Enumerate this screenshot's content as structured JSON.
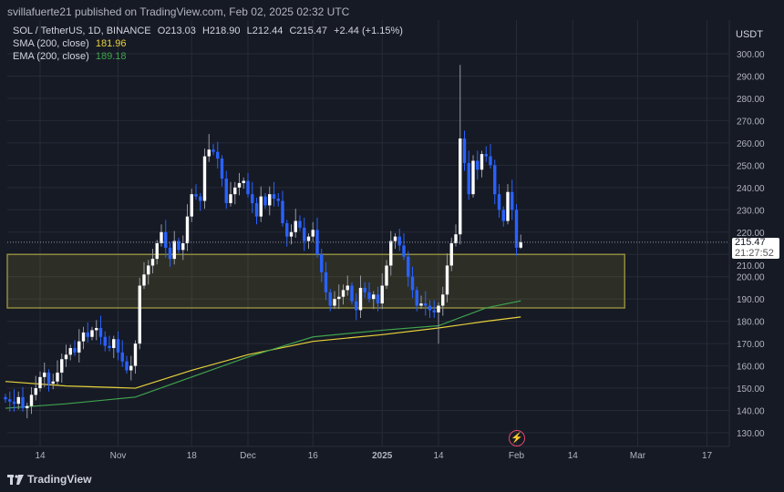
{
  "header": {
    "published": "svillafuerte21 published on TradingView.com, Feb 02, 2025 02:32 UTC"
  },
  "legend": {
    "symbol": "SOL / TetherUS, 1D, BINANCE",
    "open": "O213.03",
    "high": "H218.90",
    "low": "L212.44",
    "close": "C215.47",
    "change": "+2.44 (+1.15%)",
    "sma_label": "SMA (200, close)",
    "sma_value": "181.96",
    "ema_label": "EMA (200, close)",
    "ema_value": "189.18"
  },
  "axis": {
    "currency": "USDT",
    "last_price": "215.47",
    "countdown": "21:27:52"
  },
  "footer": {
    "brand": "TradingView"
  },
  "colors": {
    "up": "#ffffff",
    "down": "#2962ff",
    "sma": "#e8d23a",
    "ema": "#3fa34d",
    "zone": "#ffeb3b",
    "background": "#161a25",
    "grid": "#262b37"
  },
  "chart_data": {
    "type": "candlestick",
    "interval": "1D",
    "first_date": "2024-10-06",
    "ylim": [
      125,
      305
    ],
    "y_ticks": [
      130,
      140,
      150,
      160,
      170,
      180,
      190,
      200,
      210,
      220,
      230,
      240,
      250,
      260,
      270,
      280,
      290,
      300
    ],
    "x_ticks": [
      {
        "label": "14",
        "date": "2024-10-14"
      },
      {
        "label": "Nov",
        "date": "2024-11-01"
      },
      {
        "label": "18",
        "date": "2024-11-18"
      },
      {
        "label": "Dec",
        "date": "2024-12-01"
      },
      {
        "label": "16",
        "date": "2024-12-16"
      },
      {
        "label": "2025",
        "date": "2025-01-01"
      },
      {
        "label": "14",
        "date": "2025-01-14"
      },
      {
        "label": "Feb",
        "date": "2025-02-01"
      },
      {
        "label": "14",
        "date": "2025-02-14"
      },
      {
        "label": "Mar",
        "date": "2025-03-01"
      },
      {
        "label": "17",
        "date": "2025-03-17"
      }
    ],
    "closes": [
      145,
      144,
      143,
      146,
      141,
      142,
      147,
      150,
      155,
      157,
      152,
      153,
      157,
      163,
      165,
      168,
      166,
      171,
      175,
      173,
      176,
      177,
      173,
      169,
      168,
      172,
      166,
      162,
      158,
      160,
      170,
      196,
      201,
      205,
      208,
      215,
      220,
      213,
      208,
      216,
      212,
      215,
      227,
      237,
      236,
      234,
      254,
      257,
      256,
      253,
      244,
      233,
      237,
      240,
      242,
      243,
      237,
      233,
      227,
      236,
      232,
      237,
      235,
      234,
      224,
      218,
      220,
      225,
      222,
      216,
      218,
      221,
      210,
      202,
      193,
      187,
      190,
      191,
      194,
      196,
      189,
      185,
      195,
      193,
      190,
      192,
      188,
      196,
      205,
      216,
      218,
      214,
      209,
      200,
      194,
      187,
      188,
      187,
      185,
      184,
      187,
      192,
      205,
      215,
      219,
      262,
      251,
      237,
      252,
      248,
      255,
      254,
      250,
      237,
      230,
      225,
      238,
      230,
      213.03,
      215.47
    ],
    "wick_extremes": [
      {
        "date": "2025-01-19",
        "high": 295
      },
      {
        "date": "2025-01-14",
        "low": 170
      },
      {
        "date": "2024-11-22",
        "high": 264
      },
      {
        "date": "2025-02-02",
        "high": 218.9,
        "low": 212.44
      }
    ],
    "sma_200": [
      [
        "2024-10-06",
        153
      ],
      [
        "2024-10-20",
        151
      ],
      [
        "2024-11-05",
        150
      ],
      [
        "2024-11-18",
        158
      ],
      [
        "2024-12-01",
        165
      ],
      [
        "2024-12-16",
        171
      ],
      [
        "2025-01-01",
        174
      ],
      [
        "2025-01-14",
        177
      ],
      [
        "2025-01-25",
        180
      ],
      [
        "2025-02-02",
        181.96
      ]
    ],
    "ema_200": [
      [
        "2024-10-06",
        141
      ],
      [
        "2024-10-20",
        143
      ],
      [
        "2024-11-05",
        146
      ],
      [
        "2024-11-18",
        155
      ],
      [
        "2024-12-01",
        164
      ],
      [
        "2024-12-16",
        173
      ],
      [
        "2025-01-01",
        176
      ],
      [
        "2025-01-14",
        178
      ],
      [
        "2025-01-25",
        186
      ],
      [
        "2025-02-02",
        189.18
      ]
    ],
    "zone": {
      "low": 186,
      "high": 210,
      "end_date": "2025-02-26"
    }
  }
}
